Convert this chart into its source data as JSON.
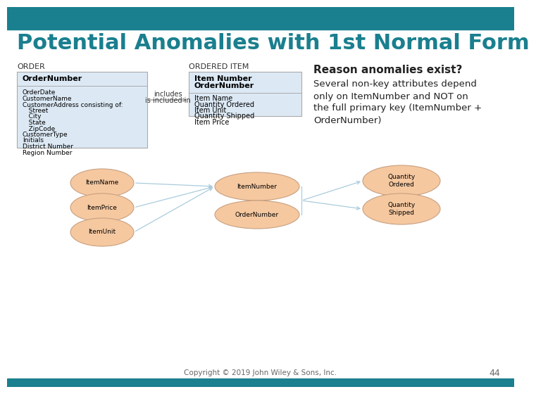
{
  "title": "Potential Anomalies with 1st Normal Form",
  "title_color": "#1a7f8e",
  "header_bar_color": "#1a7f8e",
  "bg_color": "#ffffff",
  "reason_heading": "Reason anomalies exist?",
  "reason_text_lines": [
    "Several non-key attributes depend",
    "only on ItemNumber and NOT on",
    "the full primary key (ItemNumber +",
    "OrderNumber)"
  ],
  "order_label": "ORDER",
  "ordered_item_label": "ORDERED ITEM",
  "order_box_bold": "OrderNumber",
  "order_box_fields": [
    "OrderDate",
    "CustomerName",
    "CustomerAddress consisting of:",
    "   Street",
    "   City",
    "   State",
    "   ZipCode",
    "CustomerType",
    "Initials",
    "District Number",
    "Region Number"
  ],
  "ordered_item_bold1": "Item Number",
  "ordered_item_bold2": "OrderNumber",
  "ordered_item_box_fields": [
    "Item Name",
    "Quantity Ordered",
    "Item Unit",
    "Quantity Shipped",
    "Item Price"
  ],
  "includes_text1": "includes",
  "includes_text2": "is included in",
  "box_fill_color": "#dce9f5",
  "box_edge_color": "#aaaaaa",
  "ellipse_color": "#f5c8a0",
  "ellipse_edge_color": "#c8a080",
  "arrow_color": "#aaccdd",
  "footer_text": "Copyright © 2019 John Wiley & Sons, Inc.",
  "page_number": "44",
  "footer_color": "#666666"
}
